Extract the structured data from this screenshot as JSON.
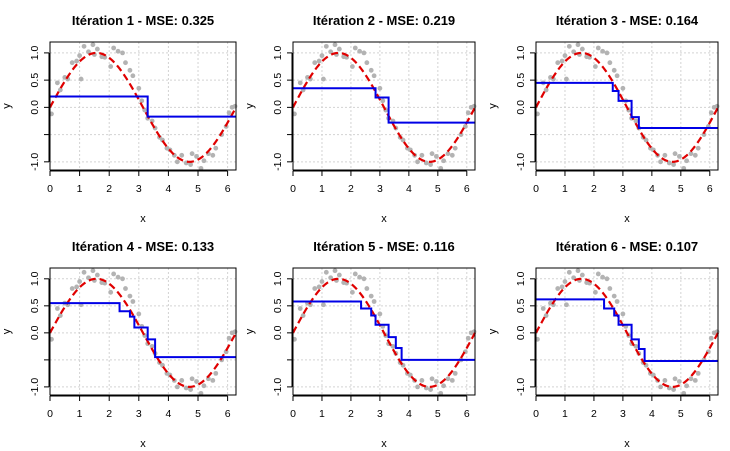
{
  "chart_data": {
    "type": "line",
    "layout": "2x3 grid",
    "true_function": "sin(x)",
    "colors": {
      "points": "#b3b3b3",
      "truth": "#e00000",
      "fit": "#0000e6",
      "grid": "#d3d3d3"
    },
    "grid": true,
    "xlim": [
      0,
      6.2832
    ],
    "ylim": [
      -1.15,
      1.2
    ],
    "x_ticks": [
      0,
      1,
      2,
      3,
      4,
      5,
      6
    ],
    "y_ticks": [
      {
        "v": -1.0,
        "label": "-1.0"
      },
      {
        "v": -0.5,
        "label": ""
      },
      {
        "v": 0.0,
        "label": "0.0"
      },
      {
        "v": 0.5,
        "label": "0.5"
      },
      {
        "v": 1.0,
        "label": "1.0"
      }
    ],
    "scatter": [
      [
        0.05,
        -0.12
      ],
      [
        0.25,
        0.45
      ],
      [
        0.35,
        0.32
      ],
      [
        0.5,
        0.55
      ],
      [
        0.6,
        0.52
      ],
      [
        0.75,
        0.82
      ],
      [
        0.9,
        0.85
      ],
      [
        1.0,
        0.95
      ],
      [
        1.05,
        0.52
      ],
      [
        1.15,
        1.12
      ],
      [
        1.3,
        1.02
      ],
      [
        1.45,
        1.15
      ],
      [
        1.5,
        0.97
      ],
      [
        1.6,
        1.07
      ],
      [
        1.75,
        0.93
      ],
      [
        1.85,
        0.92
      ],
      [
        2.05,
        0.75
      ],
      [
        2.15,
        1.09
      ],
      [
        2.3,
        1.03
      ],
      [
        2.45,
        1.0
      ],
      [
        2.55,
        0.82
      ],
      [
        2.7,
        0.68
      ],
      [
        2.8,
        0.58
      ],
      [
        3.0,
        0.35
      ],
      [
        3.1,
        0.12
      ],
      [
        3.2,
        -0.05
      ],
      [
        3.3,
        -0.2
      ],
      [
        3.45,
        -0.25
      ],
      [
        3.55,
        -0.38
      ],
      [
        3.7,
        -0.55
      ],
      [
        3.8,
        -0.6
      ],
      [
        3.95,
        -0.75
      ],
      [
        4.05,
        -0.78
      ],
      [
        4.2,
        -0.88
      ],
      [
        4.3,
        -1.0
      ],
      [
        4.45,
        -0.88
      ],
      [
        4.6,
        -1.02
      ],
      [
        4.75,
        -1.05
      ],
      [
        4.8,
        -0.85
      ],
      [
        4.95,
        -0.9
      ],
      [
        5.1,
        -1.12
      ],
      [
        5.2,
        -0.98
      ],
      [
        5.35,
        -0.85
      ],
      [
        5.5,
        -0.88
      ],
      [
        5.6,
        -0.75
      ],
      [
        5.8,
        -0.5
      ],
      [
        5.95,
        -0.35
      ],
      [
        6.05,
        -0.1
      ],
      [
        6.15,
        0.0
      ],
      [
        6.25,
        0.02
      ]
    ],
    "panels": [
      {
        "title": "Itération 1 - MSE: 0.325",
        "xlabel": "x",
        "ylabel": "y",
        "fit": [
          [
            0,
            0.2
          ],
          [
            3.3,
            0.2
          ],
          [
            3.3,
            -0.17
          ],
          [
            6.28,
            -0.17
          ]
        ]
      },
      {
        "title": "Itération 2 - MSE: 0.219",
        "xlabel": "x",
        "ylabel": "y",
        "fit": [
          [
            0,
            0.35
          ],
          [
            2.85,
            0.35
          ],
          [
            2.85,
            0.18
          ],
          [
            3.3,
            0.18
          ],
          [
            3.3,
            -0.28
          ],
          [
            6.28,
            -0.28
          ]
        ]
      },
      {
        "title": "Itération 3 - MSE: 0.164",
        "xlabel": "x",
        "ylabel": "y",
        "fit": [
          [
            0,
            0.45
          ],
          [
            2.65,
            0.45
          ],
          [
            2.65,
            0.3
          ],
          [
            2.85,
            0.3
          ],
          [
            2.85,
            0.12
          ],
          [
            3.3,
            0.12
          ],
          [
            3.3,
            -0.18
          ],
          [
            3.55,
            -0.18
          ],
          [
            3.55,
            -0.38
          ],
          [
            6.28,
            -0.38
          ]
        ]
      },
      {
        "title": "Itération 4 - MSE: 0.133",
        "xlabel": "x",
        "ylabel": "y",
        "fit": [
          [
            0,
            0.55
          ],
          [
            2.35,
            0.55
          ],
          [
            2.35,
            0.4
          ],
          [
            2.7,
            0.4
          ],
          [
            2.7,
            0.3
          ],
          [
            2.85,
            0.3
          ],
          [
            2.85,
            0.1
          ],
          [
            3.3,
            0.1
          ],
          [
            3.3,
            -0.12
          ],
          [
            3.55,
            -0.12
          ],
          [
            3.55,
            -0.45
          ],
          [
            6.28,
            -0.45
          ]
        ]
      },
      {
        "title": "Itération 5 - MSE: 0.116",
        "xlabel": "x",
        "ylabel": "y",
        "fit": [
          [
            0,
            0.58
          ],
          [
            2.35,
            0.58
          ],
          [
            2.35,
            0.45
          ],
          [
            2.7,
            0.45
          ],
          [
            2.7,
            0.32
          ],
          [
            2.85,
            0.32
          ],
          [
            2.85,
            0.15
          ],
          [
            3.3,
            0.15
          ],
          [
            3.3,
            -0.08
          ],
          [
            3.55,
            -0.08
          ],
          [
            3.55,
            -0.28
          ],
          [
            3.75,
            -0.28
          ],
          [
            3.75,
            -0.5
          ],
          [
            6.28,
            -0.5
          ]
        ]
      },
      {
        "title": "Itération 6 - MSE: 0.107",
        "xlabel": "x",
        "ylabel": "y",
        "fit": [
          [
            0,
            0.62
          ],
          [
            2.35,
            0.62
          ],
          [
            2.35,
            0.45
          ],
          [
            2.7,
            0.45
          ],
          [
            2.7,
            0.32
          ],
          [
            2.85,
            0.32
          ],
          [
            2.85,
            0.15
          ],
          [
            3.3,
            0.15
          ],
          [
            3.3,
            -0.12
          ],
          [
            3.55,
            -0.12
          ],
          [
            3.55,
            -0.3
          ],
          [
            3.75,
            -0.3
          ],
          [
            3.75,
            -0.52
          ],
          [
            6.28,
            -0.52
          ]
        ]
      }
    ]
  }
}
